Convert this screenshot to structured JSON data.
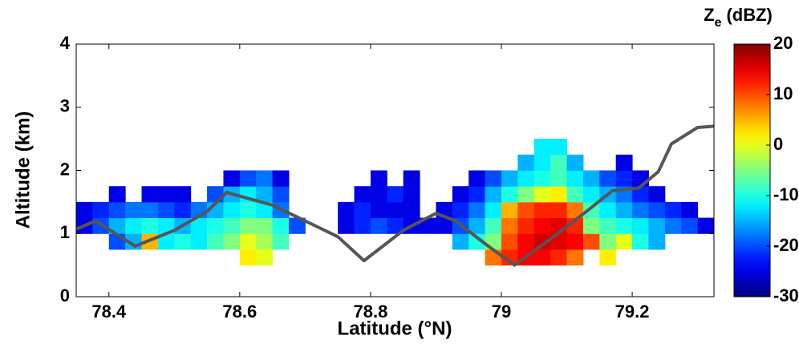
{
  "chart_data": {
    "type": "heatmap",
    "xlabel": "Latitude (°N)",
    "ylabel": "Altitude (km)",
    "colorbar_label": "Z",
    "colorbar_label_subscript": "e",
    "colorbar_unit": "(dBZ)",
    "xlim": [
      78.35,
      79.325
    ],
    "xticks": [
      78.4,
      78.6,
      78.8,
      79,
      79.2
    ],
    "ylim": [
      0,
      4
    ],
    "yticks": [
      0,
      1,
      2,
      3,
      4
    ],
    "clim": [
      -30,
      20
    ],
    "cticks": [
      -30,
      -20,
      -10,
      0,
      10,
      20
    ],
    "colormap": "jet",
    "x_edges": [
      78.35,
      78.375,
      78.4,
      78.425,
      78.45,
      78.475,
      78.5,
      78.525,
      78.55,
      78.575,
      78.6,
      78.625,
      78.65,
      78.675,
      78.7,
      78.725,
      78.75,
      78.775,
      78.8,
      78.825,
      78.85,
      78.875,
      78.9,
      78.925,
      78.95,
      78.975,
      79.0,
      79.025,
      79.05,
      79.075,
      79.1,
      79.125,
      79.15,
      79.175,
      79.2,
      79.225,
      79.25,
      79.275,
      79.3,
      79.325
    ],
    "y_edges": [
      0.5,
      0.75,
      1.0,
      1.25,
      1.5,
      1.75,
      2.0,
      2.25,
      2.5
    ],
    "z": [
      [
        null,
        null,
        null,
        null,
        null,
        null,
        null,
        null,
        null,
        null,
        2,
        0,
        null,
        null,
        null,
        null,
        null,
        null,
        null,
        null,
        null,
        null,
        null,
        null,
        null,
        8,
        12,
        14,
        14,
        12,
        8,
        null,
        2,
        null,
        null,
        null,
        null,
        null,
        null
      ],
      [
        null,
        null,
        -20,
        -15,
        5,
        -12,
        -10,
        -12,
        -8,
        -5,
        0,
        -3,
        -8,
        null,
        null,
        null,
        null,
        null,
        null,
        null,
        null,
        null,
        null,
        -15,
        -10,
        -5,
        10,
        14,
        16,
        15,
        14,
        10,
        -5,
        0,
        -10,
        -15,
        null,
        null,
        null
      ],
      [
        -25,
        -20,
        -15,
        -12,
        -10,
        -12,
        -15,
        -12,
        -10,
        -8,
        -5,
        -5,
        -10,
        -20,
        null,
        null,
        -25,
        -22,
        -20,
        -22,
        -25,
        -25,
        -25,
        -20,
        -15,
        -8,
        8,
        12,
        14,
        15,
        12,
        -5,
        -8,
        -10,
        -12,
        -15,
        -18,
        -20,
        -25
      ],
      [
        -25,
        -22,
        -20,
        -18,
        -18,
        -20,
        -22,
        -18,
        -15,
        -12,
        -10,
        -12,
        -18,
        null,
        null,
        null,
        -25,
        -22,
        -25,
        -25,
        -25,
        null,
        -25,
        -22,
        -18,
        -12,
        5,
        10,
        12,
        12,
        8,
        -8,
        -12,
        -15,
        -18,
        -20,
        -22,
        -25,
        null
      ],
      [
        null,
        null,
        -25,
        null,
        -25,
        -25,
        -25,
        null,
        -20,
        -15,
        -12,
        -15,
        -20,
        null,
        null,
        null,
        null,
        -25,
        -25,
        -22,
        -25,
        null,
        null,
        -25,
        -22,
        -15,
        -10,
        -5,
        0,
        2,
        -8,
        -12,
        -15,
        -18,
        -22,
        -25,
        null,
        null,
        null
      ],
      [
        null,
        null,
        null,
        null,
        null,
        null,
        null,
        null,
        null,
        -25,
        -20,
        -18,
        -25,
        null,
        null,
        null,
        null,
        null,
        -25,
        null,
        -25,
        null,
        null,
        null,
        -25,
        -20,
        -15,
        -12,
        -10,
        -8,
        -12,
        -15,
        -20,
        -22,
        -25,
        null,
        null,
        null,
        null
      ],
      [
        null,
        null,
        null,
        null,
        null,
        null,
        null,
        null,
        null,
        null,
        null,
        null,
        null,
        null,
        null,
        null,
        null,
        null,
        null,
        null,
        null,
        null,
        null,
        null,
        null,
        null,
        null,
        -15,
        -12,
        -8,
        -15,
        null,
        null,
        -25,
        null,
        null,
        null,
        null,
        null
      ],
      [
        null,
        null,
        null,
        null,
        null,
        null,
        null,
        null,
        null,
        null,
        null,
        null,
        null,
        null,
        null,
        null,
        null,
        null,
        null,
        null,
        null,
        null,
        null,
        null,
        null,
        null,
        null,
        null,
        -12,
        -12,
        null,
        null,
        null,
        null,
        null,
        null,
        null,
        null,
        null
      ]
    ],
    "series": [
      {
        "type": "line",
        "color": "#555555",
        "x": [
          78.35,
          78.38,
          78.44,
          78.5,
          78.55,
          78.58,
          78.65,
          78.72,
          78.75,
          78.79,
          78.85,
          78.9,
          78.93,
          78.98,
          79.02,
          79.08,
          79.13,
          79.17,
          79.21,
          79.24,
          79.26,
          79.3,
          79.325
        ],
        "values": [
          1.07,
          1.2,
          0.8,
          1.05,
          1.35,
          1.65,
          1.45,
          1.1,
          0.95,
          0.57,
          1.05,
          1.32,
          1.2,
          0.8,
          0.5,
          0.95,
          1.35,
          1.68,
          1.72,
          1.98,
          2.42,
          2.68,
          2.7
        ]
      }
    ]
  }
}
